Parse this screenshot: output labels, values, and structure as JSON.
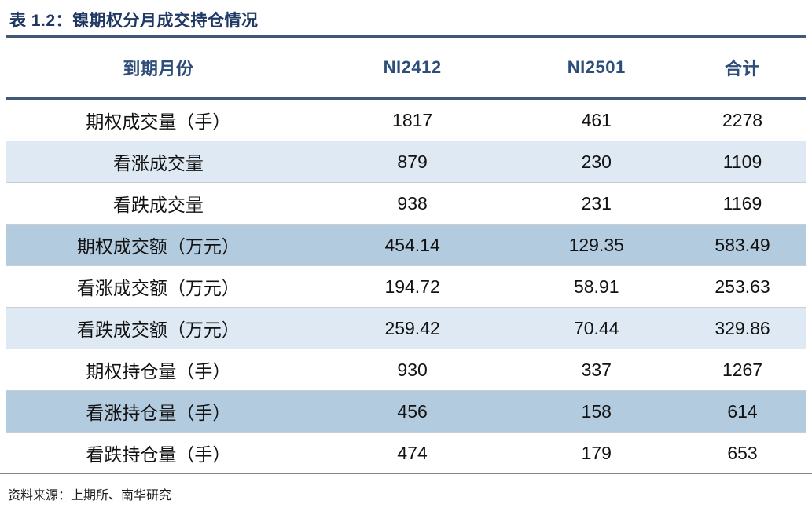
{
  "title": "表 1.2：镍期权分月成交持仓情况",
  "table": {
    "columns": [
      "到期月份",
      "NI2412",
      "NI2501",
      "合计"
    ],
    "rows": [
      {
        "label": "期权成交量（手）",
        "values": [
          "1817",
          "461",
          "2278"
        ]
      },
      {
        "label": "看涨成交量",
        "values": [
          "879",
          "230",
          "1109"
        ]
      },
      {
        "label": "看跌成交量",
        "values": [
          "938",
          "231",
          "1169"
        ]
      },
      {
        "label": "期权成交额（万元）",
        "values": [
          "454.14",
          "129.35",
          "583.49"
        ]
      },
      {
        "label": "看涨成交额（万元）",
        "values": [
          "194.72",
          "58.91",
          "253.63"
        ]
      },
      {
        "label": "看跌成交额（万元）",
        "values": [
          "259.42",
          "70.44",
          "329.86"
        ]
      },
      {
        "label": "期权持仓量（手）",
        "values": [
          "930",
          "337",
          "1267"
        ]
      },
      {
        "label": "看涨持仓量（手）",
        "values": [
          "456",
          "158",
          "614"
        ]
      },
      {
        "label": "看跌持仓量（手）",
        "values": [
          "474",
          "179",
          "653"
        ]
      }
    ]
  },
  "source": "资料来源：上期所、南华研究",
  "colors": {
    "title_text": "#1F3864",
    "header_text": "#2E4E79",
    "rule": "#41587A",
    "band_medium": "#B3CBDF",
    "band_light": "#DFE9F3",
    "row_separator": "#C9CED4",
    "footer_rule": "#7F878F",
    "body_text": "#121212"
  }
}
